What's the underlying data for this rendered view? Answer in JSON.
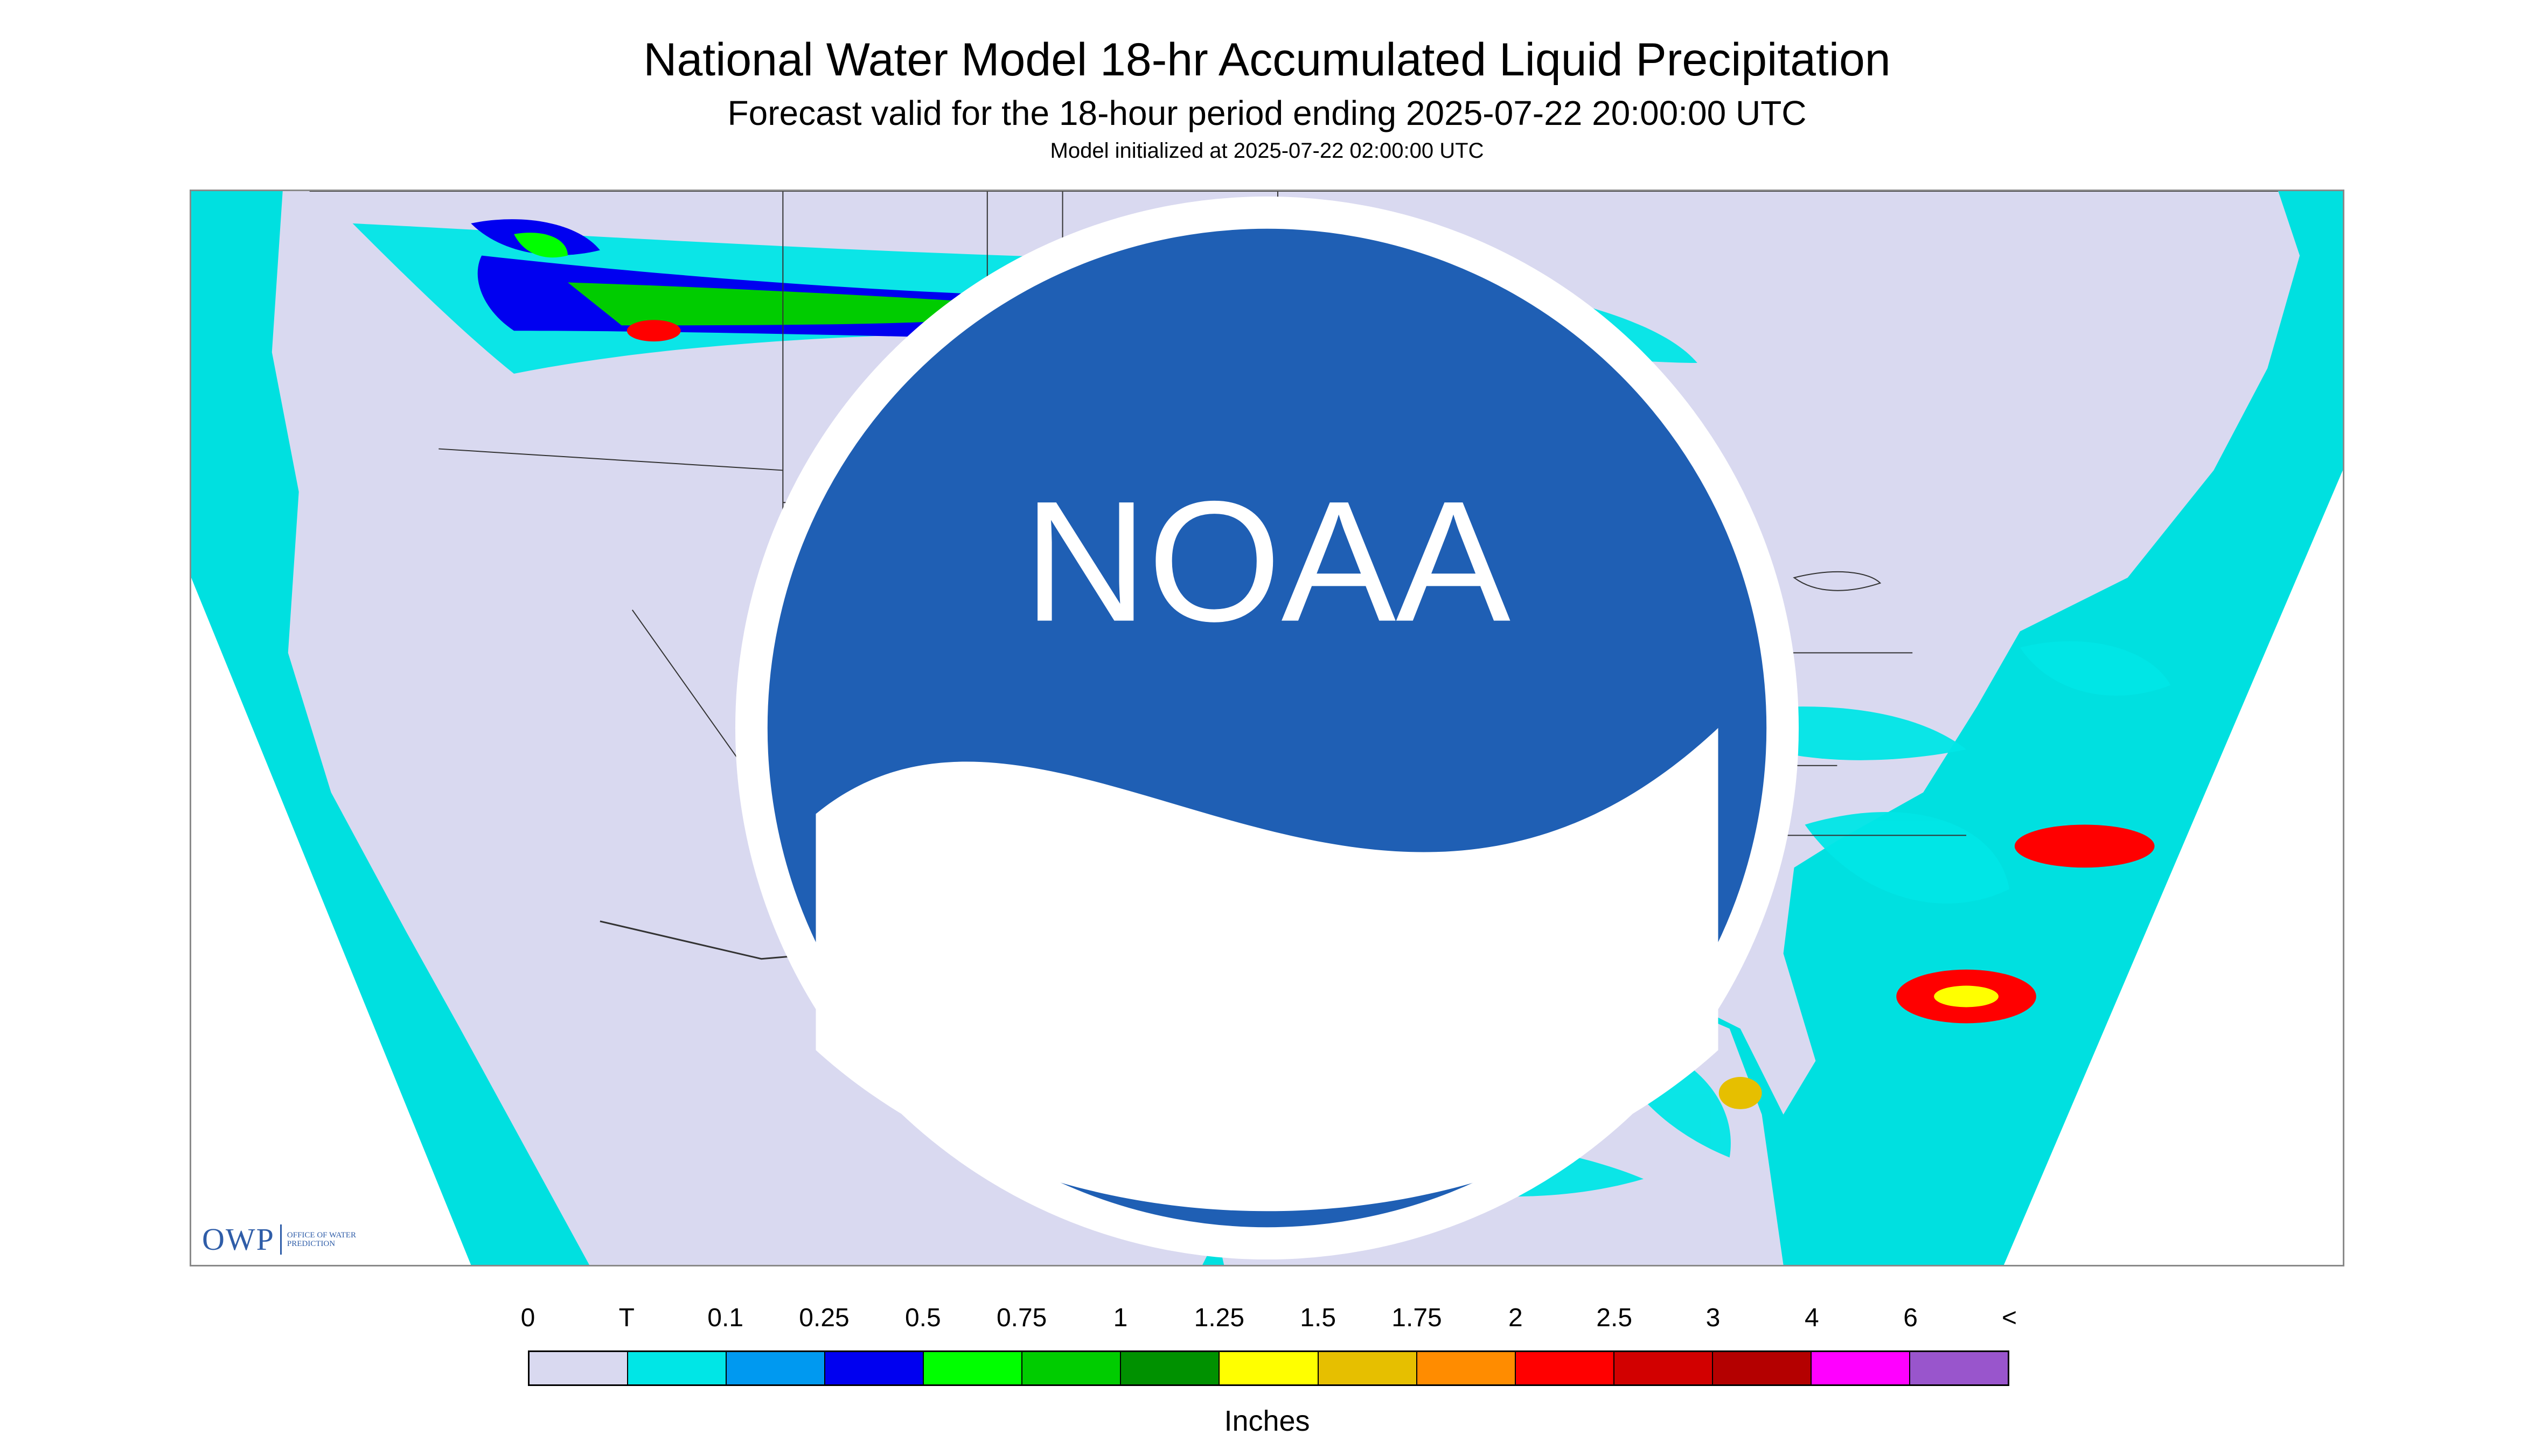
{
  "header": {
    "title": "National Water Model 18-hr Accumulated Liquid Precipitation",
    "subtitle": "Forecast valid for the 18-hour period ending 2025-07-22 20:00:00 UTC",
    "init": "Model initialized at 2025-07-22 02:00:00 UTC"
  },
  "map": {
    "background_color": "#d9d9f0",
    "ocean_color": "#00e0e0",
    "icons": [
      "owp-logo",
      "noaa-logo"
    ]
  },
  "branding": {
    "owp": "OWP",
    "owp_sub": "OFFICE OF WATER PREDICTION",
    "noaa": "NOAA"
  },
  "legend": {
    "labels": [
      "0",
      "T",
      "0.1",
      "0.25",
      "0.5",
      "0.75",
      "1",
      "1.25",
      "1.5",
      "1.75",
      "2",
      "2.5",
      "3",
      "4",
      "6",
      "<"
    ],
    "colors": [
      "#d9d9f0",
      "#00e6e6",
      "#0099f0",
      "#0000f0",
      "#00ff00",
      "#00cc00",
      "#009100",
      "#ffff00",
      "#e6bf00",
      "#ff8c00",
      "#ff0000",
      "#d20000",
      "#b40000",
      "#ff00ff",
      "#9955cc"
    ],
    "units": "Inches"
  }
}
